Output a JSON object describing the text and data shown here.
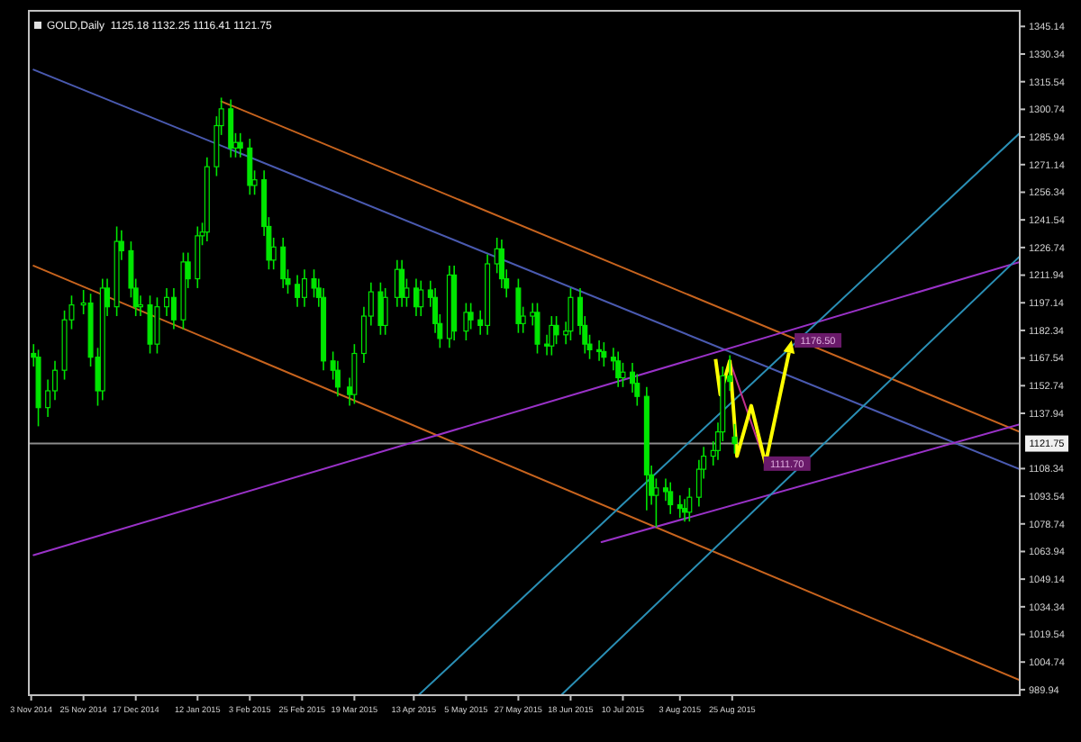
{
  "chart_data": {
    "type": "candlestick",
    "title": "GOLD,Daily  1125.18 1132.25 1116.41 1121.75",
    "xlim": [
      "2014-11-02",
      "2015-12-24"
    ],
    "xticks": [
      {
        "value": "2014-11-03",
        "label": "3 Nov 2014"
      },
      {
        "value": "2014-11-25",
        "label": "25 Nov 2014"
      },
      {
        "value": "2014-12-17",
        "label": "17 Dec 2014"
      },
      {
        "value": "2015-01-12",
        "label": "12 Jan 2015"
      },
      {
        "value": "2015-02-03",
        "label": "3 Feb 2015"
      },
      {
        "value": "2015-02-25",
        "label": "25 Feb 2015"
      },
      {
        "value": "2015-03-19",
        "label": "19 Mar 2015"
      },
      {
        "value": "2015-04-13",
        "label": "13 Apr 2015"
      },
      {
        "value": "2015-05-05",
        "label": "5 May 2015"
      },
      {
        "value": "2015-05-27",
        "label": "27 May 2015"
      },
      {
        "value": "2015-06-18",
        "label": "18 Jun 2015"
      },
      {
        "value": "2015-07-10",
        "label": "10 Jul 2015"
      },
      {
        "value": "2015-08-03",
        "label": "3 Aug 2015"
      },
      {
        "value": "2015-08-25",
        "label": "25 Aug 2015"
      }
    ],
    "ylim": [
      987,
      1353.5
    ],
    "yticks": [
      989.94,
      1004.74,
      1019.54,
      1034.34,
      1049.14,
      1063.94,
      1078.74,
      1093.54,
      1108.34,
      1137.94,
      1152.74,
      1167.54,
      1182.34,
      1197.14,
      1211.94,
      1226.74,
      1241.54,
      1256.34,
      1271.14,
      1285.94,
      1300.74,
      1315.54,
      1330.34,
      1345.14
    ],
    "grid": false,
    "ref_lines": [
      {
        "axis": "y",
        "value": 1121.75,
        "label": "1121.75",
        "color": "#8c8c8c"
      }
    ],
    "annotations": [
      {
        "text": "1176.50",
        "x": "2015-09-21",
        "y": 1177
      },
      {
        "text": "1111.70",
        "x": "2015-09-08",
        "y": 1111
      }
    ],
    "series": [
      {
        "type": "line",
        "color": "#4a5ab0",
        "x": [
          "2014-11-04",
          "2015-12-24"
        ],
        "values": [
          1322,
          1108
        ]
      },
      {
        "type": "line",
        "color": "#c8641e",
        "x": [
          "2015-01-22",
          "2015-12-24"
        ],
        "values": [
          1305,
          1128
        ]
      },
      {
        "type": "line",
        "color": "#c8641e",
        "x": [
          "2014-11-04",
          "2015-12-24"
        ],
        "values": [
          1217,
          995
        ]
      },
      {
        "type": "line",
        "color": "#9a32c8",
        "x": [
          "2014-11-04",
          "2015-12-24"
        ],
        "values": [
          1062,
          1219
        ]
      },
      {
        "type": "line",
        "color": "#9a32c8",
        "x": [
          "2015-07-01",
          "2015-12-24"
        ],
        "values": [
          1069,
          1132
        ]
      },
      {
        "type": "line",
        "color": "#2a8fb5",
        "x": [
          "2015-04-15",
          "2015-12-24"
        ],
        "values": [
          987,
          1288
        ]
      },
      {
        "type": "line",
        "color": "#2a8fb5",
        "x": [
          "2015-06-14",
          "2015-12-24"
        ],
        "values": [
          987,
          1222
        ]
      },
      {
        "type": "line",
        "color": "#c0308c",
        "x": [
          "2015-08-24",
          "2015-09-08"
        ],
        "values": [
          1166,
          1111
        ]
      },
      {
        "color": "#00e600",
        "x": [
          "2014-11-04",
          "2014-11-06",
          "2014-11-10",
          "2014-11-13",
          "2014-11-17",
          "2014-11-20",
          "2014-11-25",
          "2014-11-28",
          "2014-12-01",
          "2014-12-03",
          "2014-12-05",
          "2014-12-09",
          "2014-12-11",
          "2014-12-15",
          "2014-12-17",
          "2014-12-19",
          "2014-12-23",
          "2014-12-26",
          "2014-12-30",
          "2015-01-02",
          "2015-01-06",
          "2015-01-08",
          "2015-01-12",
          "2015-01-14",
          "2015-01-16",
          "2015-01-20",
          "2015-01-22",
          "2015-01-26",
          "2015-01-28",
          "2015-01-30",
          "2015-02-03",
          "2015-02-05",
          "2015-02-09",
          "2015-02-11",
          "2015-02-13",
          "2015-02-17",
          "2015-02-19",
          "2015-02-23",
          "2015-02-26",
          "2015-03-02",
          "2015-03-04",
          "2015-03-06",
          "2015-03-10",
          "2015-03-12",
          "2015-03-17",
          "2015-03-19",
          "2015-03-23",
          "2015-03-26",
          "2015-03-30",
          "2015-04-01",
          "2015-04-06",
          "2015-04-08",
          "2015-04-10",
          "2015-04-14",
          "2015-04-16",
          "2015-04-20",
          "2015-04-22",
          "2015-04-24",
          "2015-04-28",
          "2015-04-30",
          "2015-05-05",
          "2015-05-07",
          "2015-05-11",
          "2015-05-14",
          "2015-05-18",
          "2015-05-20",
          "2015-05-22",
          "2015-05-27",
          "2015-05-29",
          "2015-06-02",
          "2015-06-04",
          "2015-06-08",
          "2015-06-10",
          "2015-06-12",
          "2015-06-16",
          "2015-06-18",
          "2015-06-22",
          "2015-06-24",
          "2015-06-26",
          "2015-06-30",
          "2015-07-02",
          "2015-07-06",
          "2015-07-08",
          "2015-07-10",
          "2015-07-14",
          "2015-07-16",
          "2015-07-20",
          "2015-07-22",
          "2015-07-24",
          "2015-07-28",
          "2015-07-30",
          "2015-08-03",
          "2015-08-05",
          "2015-08-07",
          "2015-08-11",
          "2015-08-13",
          "2015-08-17",
          "2015-08-19",
          "2015-08-21",
          "2015-08-24",
          "2015-08-26"
        ],
        "ohlc": [
          [
            1170,
            1175,
            1163,
            1168
          ],
          [
            1168,
            1172,
            1131,
            1141
          ],
          [
            1141,
            1156,
            1136,
            1150
          ],
          [
            1150,
            1166,
            1145,
            1161
          ],
          [
            1161,
            1193,
            1156,
            1188
          ],
          [
            1188,
            1201,
            1183,
            1196
          ],
          [
            1196,
            1204,
            1191,
            1197
          ],
          [
            1197,
            1202,
            1163,
            1168
          ],
          [
            1168,
            1173,
            1142,
            1150
          ],
          [
            1150,
            1210,
            1145,
            1205
          ],
          [
            1205,
            1210,
            1190,
            1195
          ],
          [
            1195,
            1238,
            1190,
            1230
          ],
          [
            1230,
            1236,
            1220,
            1225
          ],
          [
            1225,
            1230,
            1200,
            1205
          ],
          [
            1205,
            1210,
            1190,
            1195
          ],
          [
            1195,
            1201,
            1190,
            1196
          ],
          [
            1196,
            1201,
            1170,
            1175
          ],
          [
            1175,
            1200,
            1170,
            1195
          ],
          [
            1195,
            1205,
            1190,
            1200
          ],
          [
            1200,
            1205,
            1183,
            1188
          ],
          [
            1188,
            1224,
            1183,
            1219
          ],
          [
            1219,
            1224,
            1205,
            1210
          ],
          [
            1210,
            1238,
            1205,
            1233
          ],
          [
            1233,
            1240,
            1228,
            1235
          ],
          [
            1235,
            1275,
            1230,
            1270
          ],
          [
            1270,
            1297,
            1265,
            1292
          ],
          [
            1292,
            1307,
            1287,
            1301
          ],
          [
            1301,
            1306,
            1275,
            1280
          ],
          [
            1280,
            1288,
            1275,
            1283
          ],
          [
            1283,
            1288,
            1275,
            1280
          ],
          [
            1280,
            1285,
            1255,
            1260
          ],
          [
            1260,
            1268,
            1255,
            1263
          ],
          [
            1263,
            1268,
            1233,
            1238
          ],
          [
            1238,
            1243,
            1215,
            1220
          ],
          [
            1220,
            1232,
            1215,
            1227
          ],
          [
            1227,
            1232,
            1205,
            1210
          ],
          [
            1210,
            1215,
            1202,
            1207
          ],
          [
            1207,
            1212,
            1195,
            1200
          ],
          [
            1200,
            1215,
            1195,
            1210
          ],
          [
            1210,
            1215,
            1200,
            1205
          ],
          [
            1205,
            1210,
            1195,
            1200
          ],
          [
            1200,
            1205,
            1161,
            1166
          ],
          [
            1166,
            1171,
            1156,
            1161
          ],
          [
            1161,
            1166,
            1147,
            1152
          ],
          [
            1152,
            1157,
            1142,
            1148
          ],
          [
            1148,
            1175,
            1143,
            1170
          ],
          [
            1170,
            1195,
            1165,
            1190
          ],
          [
            1190,
            1208,
            1185,
            1203
          ],
          [
            1203,
            1208,
            1180,
            1185
          ],
          [
            1185,
            1205,
            1180,
            1200
          ],
          [
            1200,
            1220,
            1195,
            1215
          ],
          [
            1215,
            1220,
            1195,
            1200
          ],
          [
            1200,
            1210,
            1195,
            1205
          ],
          [
            1205,
            1210,
            1190,
            1195
          ],
          [
            1195,
            1209,
            1190,
            1204
          ],
          [
            1204,
            1209,
            1195,
            1200
          ],
          [
            1200,
            1205,
            1181,
            1186
          ],
          [
            1186,
            1191,
            1173,
            1178
          ],
          [
            1178,
            1217,
            1173,
            1212
          ],
          [
            1212,
            1217,
            1177,
            1182
          ],
          [
            1182,
            1197,
            1177,
            1192
          ],
          [
            1192,
            1197,
            1183,
            1188
          ],
          [
            1188,
            1193,
            1180,
            1185
          ],
          [
            1185,
            1223,
            1180,
            1218
          ],
          [
            1218,
            1232,
            1213,
            1226
          ],
          [
            1226,
            1231,
            1205,
            1210
          ],
          [
            1210,
            1215,
            1200,
            1205
          ],
          [
            1205,
            1210,
            1181,
            1186
          ],
          [
            1186,
            1195,
            1181,
            1190
          ],
          [
            1190,
            1197,
            1185,
            1192
          ],
          [
            1192,
            1197,
            1170,
            1175
          ],
          [
            1175,
            1180,
            1169,
            1174
          ],
          [
            1174,
            1190,
            1169,
            1185
          ],
          [
            1185,
            1190,
            1175,
            1180
          ],
          [
            1180,
            1187,
            1175,
            1182
          ],
          [
            1182,
            1205,
            1177,
            1200
          ],
          [
            1200,
            1205,
            1180,
            1185
          ],
          [
            1185,
            1190,
            1170,
            1175
          ],
          [
            1175,
            1180,
            1167,
            1172
          ],
          [
            1172,
            1177,
            1166,
            1171
          ],
          [
            1171,
            1176,
            1163,
            1168
          ],
          [
            1168,
            1173,
            1161,
            1166
          ],
          [
            1166,
            1171,
            1152,
            1157
          ],
          [
            1157,
            1165,
            1152,
            1160
          ],
          [
            1160,
            1165,
            1149,
            1154
          ],
          [
            1154,
            1159,
            1142,
            1147
          ],
          [
            1147,
            1152,
            1086,
            1105
          ],
          [
            1105,
            1110,
            1089,
            1094
          ],
          [
            1094,
            1103,
            1077,
            1098
          ],
          [
            1098,
            1103,
            1091,
            1096
          ],
          [
            1096,
            1101,
            1084,
            1089
          ],
          [
            1089,
            1094,
            1082,
            1087
          ],
          [
            1087,
            1092,
            1080,
            1085
          ],
          [
            1085,
            1098,
            1080,
            1093
          ],
          [
            1093,
            1113,
            1088,
            1108
          ],
          [
            1108,
            1120,
            1103,
            1115
          ],
          [
            1115,
            1123,
            1110,
            1118
          ],
          [
            1118,
            1133,
            1113,
            1128
          ],
          [
            1128,
            1163,
            1123,
            1158
          ],
          [
            1158,
            1169,
            1150,
            1155
          ],
          [
            1125.18,
            1132.25,
            1116.41,
            1121.75
          ]
        ]
      }
    ]
  }
}
